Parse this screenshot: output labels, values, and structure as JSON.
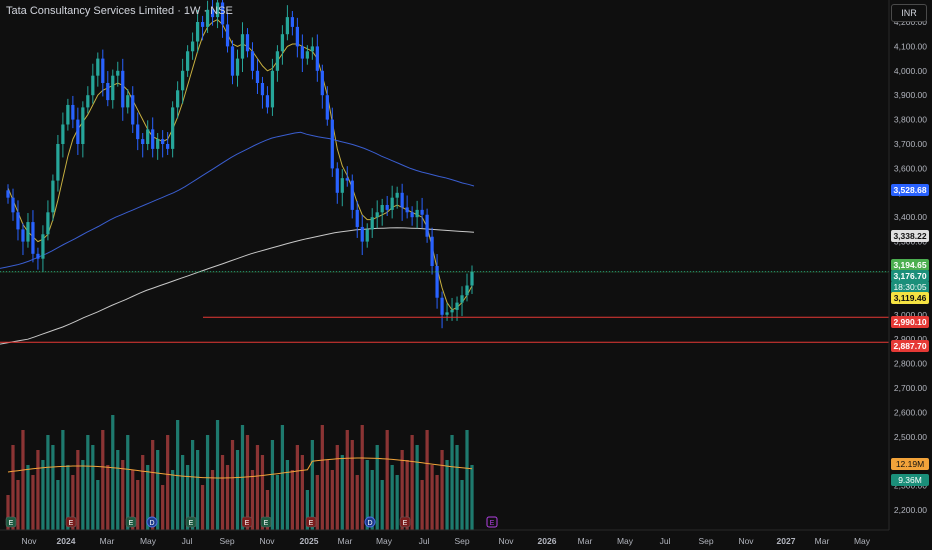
{
  "header": {
    "title": "Tata Consultancy Services Limited · 1W · NSE",
    "currency_button": "INR"
  },
  "price_tags": {
    "ma200": "3,528.68",
    "ma100": "3,338.22",
    "high": "3,194.65",
    "last": "3,176.70",
    "countdown": "18:30:05",
    "ma10": "3,119.46",
    "support1": "2,990.10",
    "support2": "2,887.70"
  },
  "volume_tags": {
    "vol_ma": "12.19M",
    "vol_last": "9.36M"
  },
  "colors": {
    "background": "#0f0f0f",
    "up": "#26a69a",
    "down": "#2962ff",
    "ma_fast": "#c8b040",
    "ma_slow": "#3a5ed0",
    "ma_long": "#c8c8c8",
    "line_red": "#e53935",
    "vol_up": "#1e7a6e",
    "vol_down": "#8b3434",
    "vol_ma": "#f2a33a"
  },
  "event_markers": [
    "E",
    "E",
    "E",
    "D",
    "E",
    "E",
    "E",
    "E",
    "D",
    "E"
  ],
  "future_event_marker": "E",
  "chart_data": {
    "type": "line",
    "title": "Tata Consultancy Services Limited · 1W · NSE",
    "xlabel": "",
    "ylabel": "",
    "currency": "INR",
    "ylim": [
      2150,
      4320
    ],
    "y_ticks": [
      4200,
      4100,
      4000,
      3900,
      3800,
      3700,
      3600,
      3500,
      3400,
      3300,
      3200,
      3100,
      3000,
      2900,
      2800,
      2700,
      2600,
      2500,
      2400,
      2300,
      2200
    ],
    "y_tick_labels": [
      "4,200.00",
      "4,100.00",
      "4,000.00",
      "3,900.00",
      "3,800.00",
      "3,700.00",
      "3,600.00",
      "3,500.00",
      "3,400.00",
      "3,300.00",
      "3,200.00",
      "3,100.00",
      "3,000.00",
      "2,900.00",
      "2,800.00",
      "2,700.00",
      "2,600.00",
      "2,500.00",
      "2,400.00",
      "2,300.00",
      "2,200.00"
    ],
    "x_tick_labels": [
      "Nov",
      "2024",
      "Mar",
      "May",
      "Jul",
      "Sep",
      "Nov",
      "2025",
      "Mar",
      "May",
      "Jul",
      "Sep",
      "Nov",
      "2026",
      "Mar",
      "May",
      "Jul",
      "Sep",
      "Nov",
      "2027",
      "Mar",
      "May"
    ],
    "horizontal_levels": [
      2990.1,
      2887.7
    ],
    "last_price": 3176.7,
    "series": [
      {
        "values": [
          3480,
          3420,
          3350,
          3300,
          3380,
          3250,
          3230,
          3330,
          3420,
          3550,
          3700,
          3780,
          3860,
          3800,
          3700,
          3850,
          3900,
          3980,
          4050,
          3950,
          3880,
          3980,
          4000,
          3850,
          3900,
          3780,
          3720,
          3700,
          3760,
          3680,
          3720,
          3700,
          3680,
          3850,
          3920,
          4000,
          4080,
          4120,
          4200,
          4180,
          4250,
          4220,
          4280,
          4190,
          4100,
          3980,
          4050,
          4150,
          4080,
          4000,
          3950,
          3900,
          3850,
          4000,
          4080,
          4150,
          4220,
          4180,
          4100,
          4050,
          4080,
          4100,
          4000,
          3900,
          3800,
          3600,
          3500,
          3560,
          3550,
          3430,
          3360,
          3300,
          3350,
          3400,
          3420,
          3450,
          3430,
          3480,
          3500,
          3440,
          3420,
          3400,
          3430,
          3410,
          3320,
          3200,
          3070,
          3000,
          3010,
          3020,
          3050,
          3080,
          3120,
          3177
        ]
      },
      {
        "values": [
          3520,
          3470,
          3420,
          3370,
          3340,
          3320,
          3300,
          3310,
          3330,
          3390,
          3470,
          3560,
          3650,
          3720,
          3760,
          3790,
          3820,
          3860,
          3900,
          3920,
          3930,
          3940,
          3950,
          3940,
          3920,
          3880,
          3840,
          3800,
          3760,
          3730,
          3720,
          3710,
          3720,
          3760,
          3810,
          3870,
          3940,
          4010,
          4080,
          4140,
          4180,
          4200,
          4210,
          4190,
          4150,
          4110,
          4100,
          4110,
          4100,
          4080,
          4050,
          4020,
          4000,
          4010,
          4040,
          4070,
          4100,
          4110,
          4110,
          4100,
          4090,
          4080,
          4050,
          3980,
          3900,
          3790,
          3680,
          3610,
          3570,
          3520,
          3460,
          3410,
          3390,
          3390,
          3400,
          3410,
          3420,
          3440,
          3450,
          3440,
          3430,
          3420,
          3410,
          3400,
          3360,
          3280,
          3190,
          3110,
          3050,
          3020,
          3030,
          3050,
          3080,
          3119
        ]
      },
      {
        "values": [
          3190,
          3195,
          3200,
          3205,
          3212,
          3220,
          3230,
          3240,
          3250,
          3262,
          3275,
          3288,
          3300,
          3312,
          3325,
          3338,
          3350,
          3362,
          3375,
          3388,
          3400,
          3410,
          3420,
          3430,
          3440,
          3450,
          3460,
          3470,
          3480,
          3490,
          3500,
          3512,
          3525,
          3540,
          3555,
          3570,
          3585,
          3600,
          3615,
          3630,
          3645,
          3658,
          3670,
          3682,
          3694,
          3705,
          3715,
          3724,
          3730,
          3735,
          3740,
          3745,
          3748,
          3740,
          3735,
          3730,
          3726,
          3722,
          3716,
          3710,
          3704,
          3698,
          3690,
          3682,
          3672,
          3662,
          3650,
          3640,
          3630,
          3620,
          3610,
          3600,
          3592,
          3585,
          3579,
          3573,
          3567,
          3562,
          3555,
          3548,
          3540,
          3535,
          3528
        ]
      },
      {
        "values": [
          2880,
          2885,
          2890,
          2895,
          2900,
          2910,
          2920,
          2930,
          2940,
          2950,
          2962,
          2975,
          2988,
          3000,
          3012,
          3025,
          3038,
          3050,
          3062,
          3075,
          3088,
          3100,
          3110,
          3120,
          3130,
          3140,
          3150,
          3160,
          3170,
          3180,
          3190,
          3200,
          3210,
          3220,
          3230,
          3240,
          3250,
          3258,
          3266,
          3274,
          3282,
          3290,
          3298,
          3305,
          3312,
          3318,
          3324,
          3330,
          3336,
          3340,
          3344,
          3348,
          3350,
          3352,
          3354,
          3355,
          3356,
          3357,
          3356,
          3355,
          3354,
          3352,
          3350,
          3348,
          3346,
          3344,
          3342,
          3340,
          3338
        ]
      }
    ]
  }
}
